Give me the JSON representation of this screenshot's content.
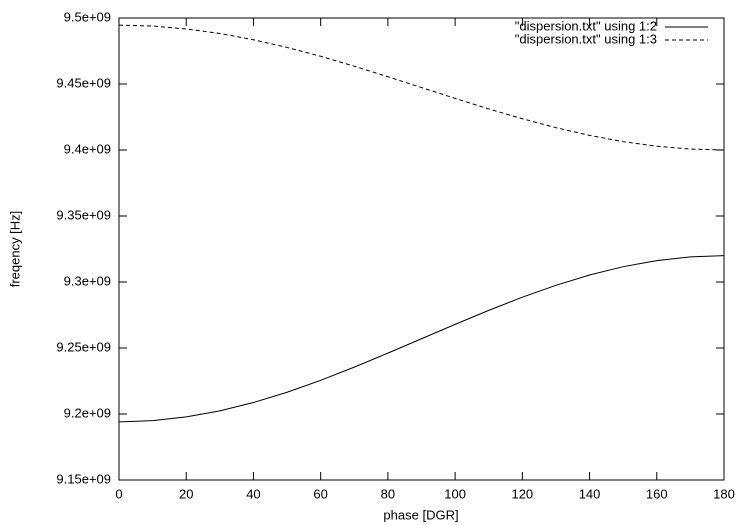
{
  "chart_data": {
    "type": "line",
    "xlabel": "phase [DGR]",
    "ylabel": "freqency [Hz]",
    "x": [
      0,
      10,
      20,
      30,
      40,
      50,
      60,
      70,
      80,
      90,
      100,
      110,
      120,
      130,
      140,
      150,
      160,
      170,
      180
    ],
    "series": [
      {
        "name": "\"dispersion.txt\" using 1:2",
        "color": "#000000",
        "dash": "none",
        "values": [
          9194000000,
          9195000000,
          9197800000,
          9202400000,
          9208700000,
          9216500000,
          9225500000,
          9235500000,
          9246100000,
          9257000000,
          9267900000,
          9278500000,
          9288500000,
          9297500000,
          9305300000,
          9311600000,
          9316200000,
          9319000000,
          9320000000
        ]
      },
      {
        "name": "\"dispersion.txt\" using 1:3",
        "color": "#000000",
        "dash": "4,3",
        "values": [
          9494600000,
          9493900000,
          9491700000,
          9488300000,
          9483500000,
          9477700000,
          9471000000,
          9463500000,
          9455500000,
          9447300000,
          9439100000,
          9431100000,
          9423700000,
          9416900000,
          9411100000,
          9406300000,
          9402900000,
          9400700000,
          9400000000
        ]
      }
    ],
    "xlim": [
      0,
      180
    ],
    "xticks": [
      0,
      20,
      40,
      60,
      80,
      100,
      120,
      140,
      160,
      180
    ],
    "ylim": [
      9150000000,
      9500000000
    ],
    "yticks": [
      {
        "value": 9150000000,
        "label": "9.15e+09"
      },
      {
        "value": 9200000000,
        "label": "9.2e+09"
      },
      {
        "value": 9250000000,
        "label": "9.25e+09"
      },
      {
        "value": 9300000000,
        "label": "9.3e+09"
      },
      {
        "value": 9350000000,
        "label": "9.35e+09"
      },
      {
        "value": 9400000000,
        "label": "9.4e+09"
      },
      {
        "value": 9450000000,
        "label": "9.45e+09"
      },
      {
        "value": 9500000000,
        "label": "9.5e+09"
      }
    ],
    "grid": false,
    "legend": "top-right"
  }
}
